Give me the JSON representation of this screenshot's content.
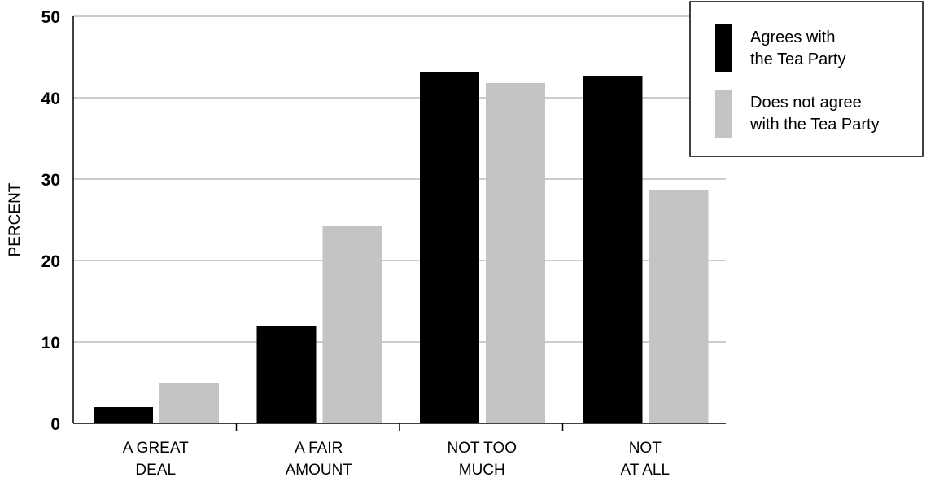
{
  "chart_data": {
    "type": "bar",
    "categories": [
      [
        "A GREAT",
        "DEAL"
      ],
      [
        "A FAIR",
        "AMOUNT"
      ],
      [
        "NOT TOO",
        "MUCH"
      ],
      [
        "NOT",
        "AT ALL"
      ]
    ],
    "series": [
      {
        "name": [
          "Agrees with",
          "the Tea Party"
        ],
        "color": "#000000",
        "values": [
          2,
          12,
          43.2,
          42.7
        ]
      },
      {
        "name": [
          "Does not agree",
          "with the Tea Party"
        ],
        "color": "#c4c4c5",
        "values": [
          5,
          24.2,
          41.8,
          28.7
        ]
      }
    ],
    "ylabel": "PERCENT",
    "yticks": [
      0,
      10,
      20,
      30,
      40,
      50
    ],
    "ylim": [
      0,
      50
    ],
    "grid": true,
    "legend_position": "top-right"
  }
}
